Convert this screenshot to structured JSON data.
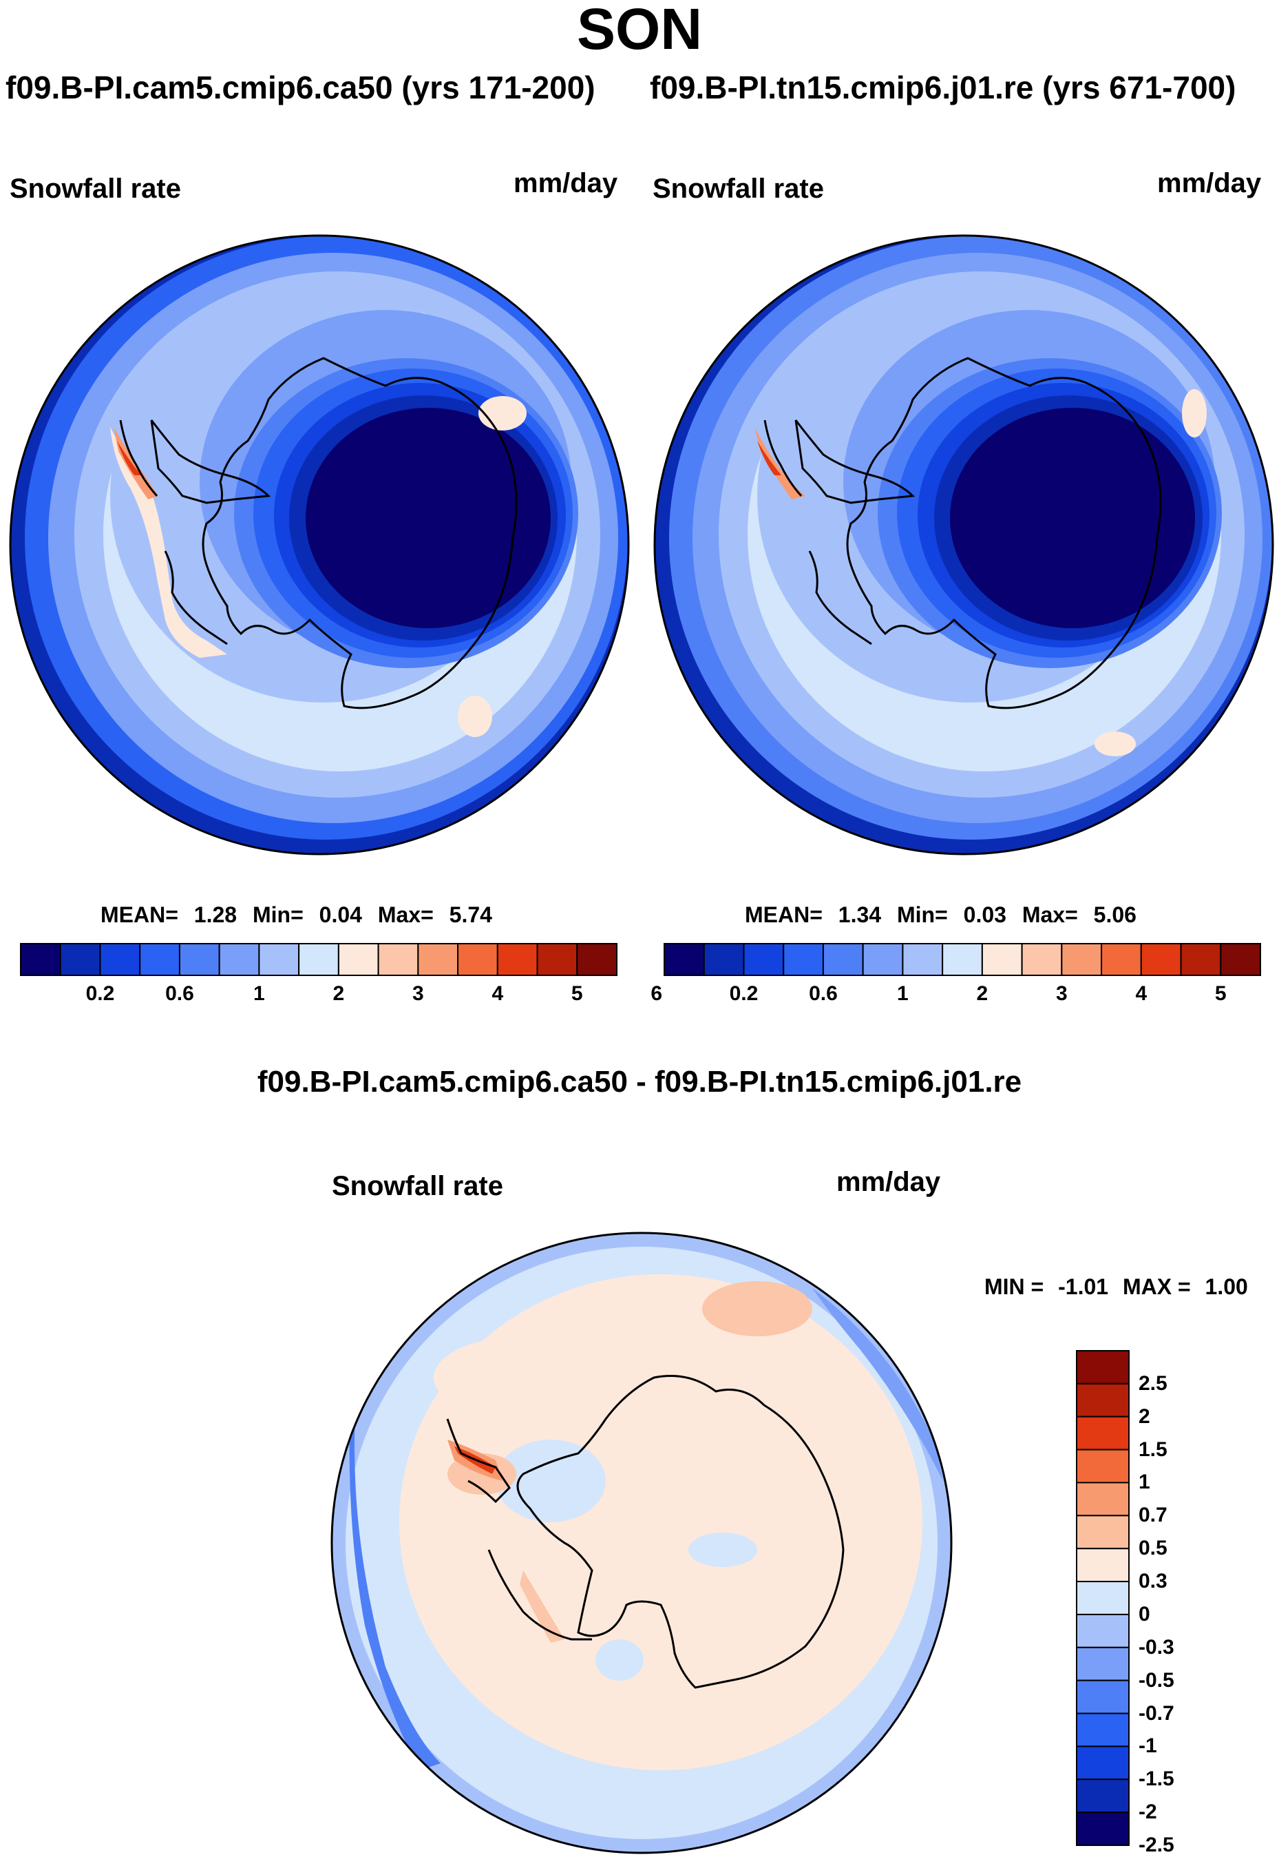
{
  "title": "SON",
  "panels": [
    {
      "subtitle": "f09.B-PI.cam5.cmip6.ca50 (yrs 171-200)",
      "variable": "Snowfall rate",
      "units": "mm/day",
      "stats": {
        "mean_label": "MEAN=",
        "mean": "1.28",
        "min_label": "Min=",
        "min": "0.04",
        "max_label": "Max=",
        "max": "5.74"
      }
    },
    {
      "subtitle": "f09.B-PI.tn15.cmip6.j01.re (yrs 671-700)",
      "variable": "Snowfall rate",
      "units": "mm/day",
      "stats": {
        "mean_label": "MEAN=",
        "mean": "1.34",
        "min_label": "Min=",
        "min": "0.03",
        "max_label": "Max=",
        "max": "5.06"
      }
    }
  ],
  "abs_colorbar": {
    "colors": [
      "#08006e",
      "#0a2cb4",
      "#1242e0",
      "#2a62f4",
      "#4f7ff6",
      "#7a9ff8",
      "#a6c1fa",
      "#d4e6fb",
      "#fde9dc",
      "#fbc6a9",
      "#f89a70",
      "#f26a3a",
      "#e33a13",
      "#b52008",
      "#7d0a05"
    ],
    "tick_labels": [
      "0.2",
      "0.6",
      "1",
      "2",
      "3",
      "4",
      "5",
      "6"
    ]
  },
  "difference": {
    "title": "f09.B-PI.cam5.cmip6.ca50 - f09.B-PI.tn15.cmip6.j01.re",
    "variable": "Snowfall rate",
    "units": "mm/day",
    "stats": {
      "min_label": "MIN =",
      "min": "-1.01",
      "max_label": "MAX =",
      "max": "1.00"
    },
    "colorbar": {
      "colors_top_to_bottom": [
        "#8a0a05",
        "#b52008",
        "#e33a13",
        "#f26a3a",
        "#f89a70",
        "#fbbf9d",
        "#fde9dc",
        "#d4e6fb",
        "#a6c1fa",
        "#7a9ff8",
        "#4f7ff6",
        "#2a62f4",
        "#1242e0",
        "#0a2cb4",
        "#08006e"
      ],
      "tick_labels_top_to_bottom": [
        "2.5",
        "2",
        "1.5",
        "1",
        "0.7",
        "0.5",
        "0.3",
        "0",
        "-0.3",
        "-0.5",
        "-0.7",
        "-1",
        "-1.5",
        "-2",
        "-2.5"
      ]
    }
  }
}
